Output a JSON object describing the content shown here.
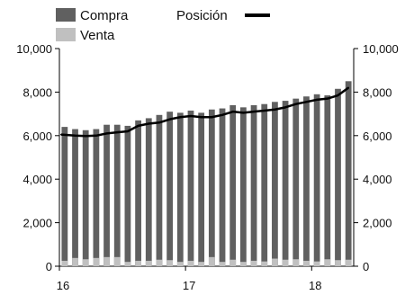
{
  "chart_data": {
    "type": "bar",
    "title": "",
    "xlabel": "",
    "ylabel": "",
    "ylim": [
      0,
      10000
    ],
    "y_ticks": [
      "0",
      "2,000",
      "4,000",
      "6,000",
      "8,000",
      "10,000"
    ],
    "y_tick_values": [
      0,
      2000,
      4000,
      6000,
      8000,
      10000
    ],
    "x_tick_labels": [
      "16",
      "17",
      "18"
    ],
    "x_tick_positions": [
      0,
      12,
      24
    ],
    "grid": false,
    "legend_position": "top-left",
    "secondary_axis": true,
    "series": [
      {
        "name": "Compra",
        "kind": "bar",
        "color": "#606060",
        "values": [
          6400,
          6300,
          6250,
          6300,
          6500,
          6500,
          6450,
          6700,
          6800,
          6950,
          7100,
          7050,
          7150,
          7050,
          7200,
          7250,
          7400,
          7300,
          7400,
          7450,
          7550,
          7600,
          7700,
          7800,
          7900,
          7850,
          8150,
          8500
        ]
      },
      {
        "name": "Venta",
        "kind": "bar",
        "color": "#c0c0c0",
        "values": [
          250,
          380,
          320,
          380,
          420,
          420,
          200,
          250,
          250,
          300,
          280,
          200,
          250,
          200,
          420,
          200,
          300,
          200,
          250,
          220,
          350,
          300,
          320,
          250,
          220,
          320,
          280,
          300
        ]
      },
      {
        "name": "Posición",
        "kind": "line",
        "color": "#000000",
        "values": [
          6050,
          6000,
          5980,
          6000,
          6100,
          6150,
          6200,
          6450,
          6550,
          6600,
          6750,
          6850,
          6900,
          6850,
          6850,
          6950,
          7100,
          7050,
          7100,
          7150,
          7200,
          7300,
          7450,
          7550,
          7650,
          7700,
          7850,
          8200
        ]
      }
    ]
  }
}
